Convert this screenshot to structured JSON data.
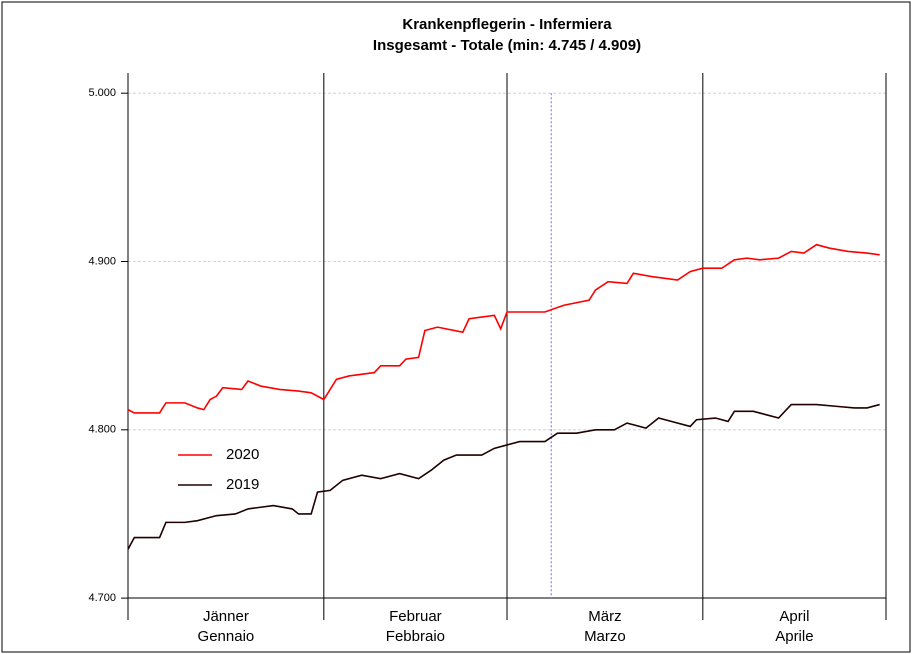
{
  "chart_data": {
    "type": "line",
    "title": "Krankenpflegerin - Infermiera",
    "subtitle": "Insgesamt - Totale (min: 4.745 / 4.909)",
    "categories": [
      "Jänner",
      "Februar",
      "März",
      "April"
    ],
    "categories_it": [
      "Gennaio",
      "Febbraio",
      "Marzo",
      "Aprile"
    ],
    "month_bounds": [
      1,
      32,
      61,
      92,
      121
    ],
    "vline_x": 68,
    "xlim": [
      1,
      121
    ],
    "ylim": [
      4.687,
      5.012
    ],
    "yticks": [
      {
        "value": 4.7,
        "label": "4.700"
      },
      {
        "value": 4.8,
        "label": "4.800"
      },
      {
        "value": 4.9,
        "label": "4.900"
      },
      {
        "value": 5.0,
        "label": "5.000"
      }
    ],
    "grid": true,
    "legend": "lower-left",
    "series": [
      {
        "name": "2020",
        "color": "#ff0000",
        "x": [
          1,
          2,
          6,
          7,
          10,
          12,
          13,
          14,
          15,
          16,
          19,
          20,
          22,
          25,
          28,
          30,
          32,
          34,
          36,
          40,
          41,
          44,
          45,
          47,
          48,
          50,
          54,
          55,
          57,
          59,
          60,
          61,
          65,
          67,
          70,
          74,
          75,
          77,
          80,
          81,
          84,
          86,
          88,
          90,
          92,
          95,
          97,
          99,
          101,
          104,
          106,
          108,
          110,
          112,
          115,
          118,
          120
        ],
        "values": [
          4.812,
          4.81,
          4.81,
          4.816,
          4.816,
          4.813,
          4.812,
          4.818,
          4.82,
          4.825,
          4.824,
          4.829,
          4.826,
          4.824,
          4.823,
          4.822,
          4.818,
          4.83,
          4.832,
          4.834,
          4.838,
          4.838,
          4.842,
          4.843,
          4.859,
          4.861,
          4.858,
          4.866,
          4.867,
          4.868,
          4.86,
          4.87,
          4.87,
          4.87,
          4.874,
          4.877,
          4.883,
          4.888,
          4.887,
          4.893,
          4.891,
          4.89,
          4.889,
          4.894,
          4.896,
          4.896,
          4.901,
          4.902,
          4.901,
          4.902,
          4.906,
          4.905,
          4.91,
          4.908,
          4.906,
          4.905,
          4.904
        ]
      },
      {
        "name": "2019",
        "color": "#200000",
        "x": [
          1,
          2,
          6,
          7,
          10,
          12,
          15,
          18,
          20,
          24,
          27,
          28,
          30,
          31,
          33,
          35,
          38,
          41,
          44,
          47,
          49,
          51,
          53,
          57,
          59,
          61,
          63,
          67,
          69,
          72,
          75,
          78,
          80,
          83,
          85,
          87,
          90,
          91,
          94,
          96,
          97,
          100,
          102,
          104,
          106,
          108,
          110,
          113,
          116,
          118,
          120
        ],
        "values": [
          4.729,
          4.736,
          4.736,
          4.745,
          4.745,
          4.746,
          4.749,
          4.75,
          4.753,
          4.755,
          4.753,
          4.75,
          4.75,
          4.763,
          4.764,
          4.77,
          4.773,
          4.771,
          4.774,
          4.771,
          4.776,
          4.782,
          4.785,
          4.785,
          4.789,
          4.791,
          4.793,
          4.793,
          4.798,
          4.798,
          4.8,
          4.8,
          4.804,
          4.801,
          4.807,
          4.805,
          4.802,
          4.806,
          4.807,
          4.805,
          4.811,
          4.811,
          4.809,
          4.807,
          4.815,
          4.815,
          4.815,
          4.814,
          4.813,
          4.813,
          4.815
        ]
      }
    ]
  }
}
